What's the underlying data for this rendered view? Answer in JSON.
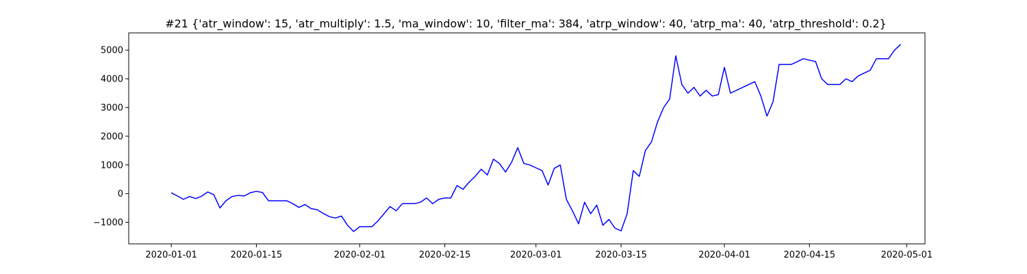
{
  "chart_data": {
    "type": "line",
    "title": "#21 {'atr_window': 15, 'atr_multiply': 1.5, 'ma_window': 10, 'filter_ma': 384, 'atrp_window': 40, 'atrp_ma': 40, 'atrp_threshold': 0.2}",
    "xlabel": "",
    "ylabel": "",
    "x_axis_type": "date",
    "xlim": [
      "2019-12-25",
      "2020-05-04"
    ],
    "ylim": [
      -1750,
      5600
    ],
    "x_ticks": [
      "2020-01-01",
      "2020-01-15",
      "2020-02-01",
      "2020-02-15",
      "2020-03-01",
      "2020-03-15",
      "2020-04-01",
      "2020-04-15",
      "2020-05-01"
    ],
    "y_ticks": [
      -1000,
      0,
      1000,
      2000,
      3000,
      4000,
      5000
    ],
    "grid": false,
    "legend": "none",
    "colors": {
      "line": "#0000ff",
      "axes": "#000000",
      "background": "#ffffff"
    },
    "series": [
      {
        "x": [
          "2020-01-01",
          "2020-01-02",
          "2020-01-03",
          "2020-01-04",
          "2020-01-05",
          "2020-01-06",
          "2020-01-07",
          "2020-01-08",
          "2020-01-09",
          "2020-01-10",
          "2020-01-11",
          "2020-01-12",
          "2020-01-13",
          "2020-01-14",
          "2020-01-15",
          "2020-01-16",
          "2020-01-17",
          "2020-01-18",
          "2020-01-19",
          "2020-01-20",
          "2020-01-21",
          "2020-01-22",
          "2020-01-23",
          "2020-01-24",
          "2020-01-25",
          "2020-01-26",
          "2020-01-27",
          "2020-01-28",
          "2020-01-29",
          "2020-01-30",
          "2020-01-31",
          "2020-02-01",
          "2020-02-02",
          "2020-02-03",
          "2020-02-04",
          "2020-02-05",
          "2020-02-06",
          "2020-02-07",
          "2020-02-08",
          "2020-02-09",
          "2020-02-10",
          "2020-02-11",
          "2020-02-12",
          "2020-02-13",
          "2020-02-14",
          "2020-02-15",
          "2020-02-16",
          "2020-02-17",
          "2020-02-18",
          "2020-02-19",
          "2020-02-20",
          "2020-02-21",
          "2020-02-22",
          "2020-02-23",
          "2020-02-24",
          "2020-02-25",
          "2020-02-26",
          "2020-02-27",
          "2020-02-28",
          "2020-02-29",
          "2020-03-01",
          "2020-03-02",
          "2020-03-03",
          "2020-03-04",
          "2020-03-05",
          "2020-03-06",
          "2020-03-07",
          "2020-03-08",
          "2020-03-09",
          "2020-03-10",
          "2020-03-11",
          "2020-03-12",
          "2020-03-13",
          "2020-03-14",
          "2020-03-15",
          "2020-03-16",
          "2020-03-17",
          "2020-03-18",
          "2020-03-19",
          "2020-03-20",
          "2020-03-21",
          "2020-03-22",
          "2020-03-23",
          "2020-03-24",
          "2020-03-25",
          "2020-03-26",
          "2020-03-27",
          "2020-03-28",
          "2020-03-29",
          "2020-03-30",
          "2020-03-31",
          "2020-04-01",
          "2020-04-02",
          "2020-04-03",
          "2020-04-04",
          "2020-04-05",
          "2020-04-06",
          "2020-04-07",
          "2020-04-08",
          "2020-04-09",
          "2020-04-10",
          "2020-04-11",
          "2020-04-12",
          "2020-04-13",
          "2020-04-14",
          "2020-04-15",
          "2020-04-16",
          "2020-04-17",
          "2020-04-18",
          "2020-04-19",
          "2020-04-20",
          "2020-04-21",
          "2020-04-22",
          "2020-04-23",
          "2020-04-24",
          "2020-04-25",
          "2020-04-26",
          "2020-04-27",
          "2020-04-28",
          "2020-04-29",
          "2020-04-30"
        ],
        "values": [
          30,
          -80,
          -200,
          -100,
          -170,
          -90,
          60,
          -40,
          -500,
          -250,
          -100,
          -60,
          -80,
          30,
          80,
          40,
          -250,
          -250,
          -250,
          -250,
          -350,
          -480,
          -380,
          -520,
          -560,
          -690,
          -800,
          -850,
          -780,
          -1100,
          -1320,
          -1150,
          -1150,
          -1150,
          -950,
          -700,
          -450,
          -600,
          -350,
          -350,
          -350,
          -300,
          -150,
          -350,
          -200,
          -150,
          -150,
          280,
          150,
          400,
          600,
          850,
          650,
          1200,
          1050,
          750,
          1100,
          1600,
          1050,
          1000,
          900,
          800,
          300,
          880,
          1000,
          -200,
          -600,
          -1050,
          -300,
          -700,
          -400,
          -1100,
          -900,
          -1200,
          -1300,
          -700,
          800,
          600,
          1500,
          1800,
          2500,
          3000,
          3300,
          4800,
          3800,
          3500,
          3700,
          3400,
          3600,
          3400,
          3450,
          4400,
          3500,
          3600,
          3700,
          3800,
          3900,
          3400,
          2700,
          3200,
          4500,
          4500,
          4500,
          4600,
          4700,
          4650,
          4600,
          4000,
          3800,
          3800,
          3800,
          4000,
          3900,
          4100,
          4200,
          4300,
          4700,
          4700,
          4700,
          5000,
          5200
        ]
      }
    ]
  }
}
